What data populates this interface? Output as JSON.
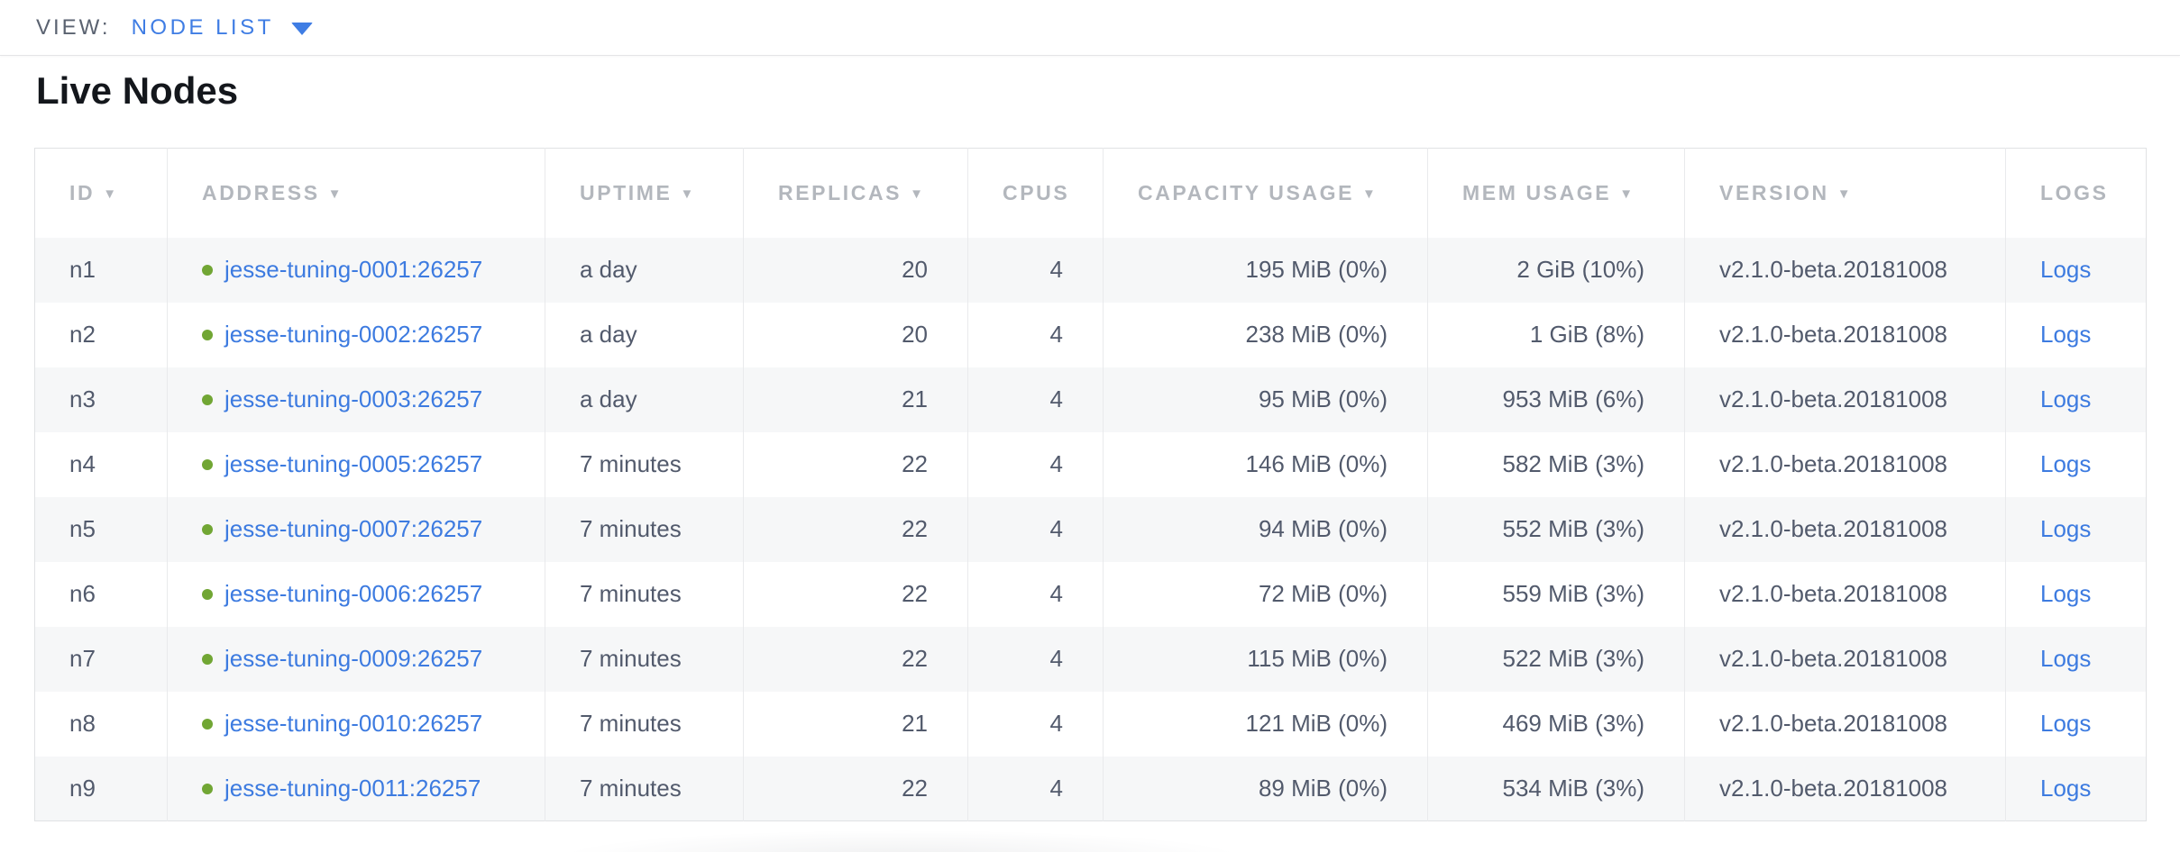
{
  "view_bar": {
    "label": "VIEW:",
    "selected": "NODE LIST"
  },
  "page": {
    "title": "Live Nodes"
  },
  "colors": {
    "accent_blue": "#3f7de4",
    "link_blue": "#3d7be0",
    "live_green": "#71a634",
    "header_gray": "#b3b7bd",
    "cell_text": "#525a6c",
    "alt_row_bg": "#f6f7f8"
  },
  "table": {
    "columns": [
      {
        "key": "id",
        "label": "ID",
        "sortable": true
      },
      {
        "key": "address",
        "label": "ADDRESS",
        "sortable": true
      },
      {
        "key": "uptime",
        "label": "UPTIME",
        "sortable": true
      },
      {
        "key": "replicas",
        "label": "REPLICAS",
        "sortable": true
      },
      {
        "key": "cpus",
        "label": "CPUS",
        "sortable": false
      },
      {
        "key": "capacity",
        "label": "CAPACITY USAGE",
        "sortable": true
      },
      {
        "key": "mem",
        "label": "MEM USAGE",
        "sortable": true
      },
      {
        "key": "version",
        "label": "VERSION",
        "sortable": true
      },
      {
        "key": "logs",
        "label": "LOGS",
        "sortable": false
      }
    ],
    "rows": [
      {
        "id": "n1",
        "address": "jesse-tuning-0001:26257",
        "uptime": "a day",
        "replicas": "20",
        "cpus": "4",
        "capacity": "195 MiB (0%)",
        "mem": "2 GiB (10%)",
        "version": "v2.1.0-beta.20181008",
        "logs": "Logs"
      },
      {
        "id": "n2",
        "address": "jesse-tuning-0002:26257",
        "uptime": "a day",
        "replicas": "20",
        "cpus": "4",
        "capacity": "238 MiB (0%)",
        "mem": "1 GiB (8%)",
        "version": "v2.1.0-beta.20181008",
        "logs": "Logs"
      },
      {
        "id": "n3",
        "address": "jesse-tuning-0003:26257",
        "uptime": "a day",
        "replicas": "21",
        "cpus": "4",
        "capacity": "95 MiB (0%)",
        "mem": "953 MiB (6%)",
        "version": "v2.1.0-beta.20181008",
        "logs": "Logs"
      },
      {
        "id": "n4",
        "address": "jesse-tuning-0005:26257",
        "uptime": "7 minutes",
        "replicas": "22",
        "cpus": "4",
        "capacity": "146 MiB (0%)",
        "mem": "582 MiB (3%)",
        "version": "v2.1.0-beta.20181008",
        "logs": "Logs"
      },
      {
        "id": "n5",
        "address": "jesse-tuning-0007:26257",
        "uptime": "7 minutes",
        "replicas": "22",
        "cpus": "4",
        "capacity": "94 MiB (0%)",
        "mem": "552 MiB (3%)",
        "version": "v2.1.0-beta.20181008",
        "logs": "Logs"
      },
      {
        "id": "n6",
        "address": "jesse-tuning-0006:26257",
        "uptime": "7 minutes",
        "replicas": "22",
        "cpus": "4",
        "capacity": "72 MiB (0%)",
        "mem": "559 MiB (3%)",
        "version": "v2.1.0-beta.20181008",
        "logs": "Logs"
      },
      {
        "id": "n7",
        "address": "jesse-tuning-0009:26257",
        "uptime": "7 minutes",
        "replicas": "22",
        "cpus": "4",
        "capacity": "115 MiB (0%)",
        "mem": "522 MiB (3%)",
        "version": "v2.1.0-beta.20181008",
        "logs": "Logs"
      },
      {
        "id": "n8",
        "address": "jesse-tuning-0010:26257",
        "uptime": "7 minutes",
        "replicas": "21",
        "cpus": "4",
        "capacity": "121 MiB (0%)",
        "mem": "469 MiB (3%)",
        "version": "v2.1.0-beta.20181008",
        "logs": "Logs"
      },
      {
        "id": "n9",
        "address": "jesse-tuning-0011:26257",
        "uptime": "7 minutes",
        "replicas": "22",
        "cpus": "4",
        "capacity": "89 MiB (0%)",
        "mem": "534 MiB (3%)",
        "version": "v2.1.0-beta.20181008",
        "logs": "Logs"
      }
    ]
  }
}
